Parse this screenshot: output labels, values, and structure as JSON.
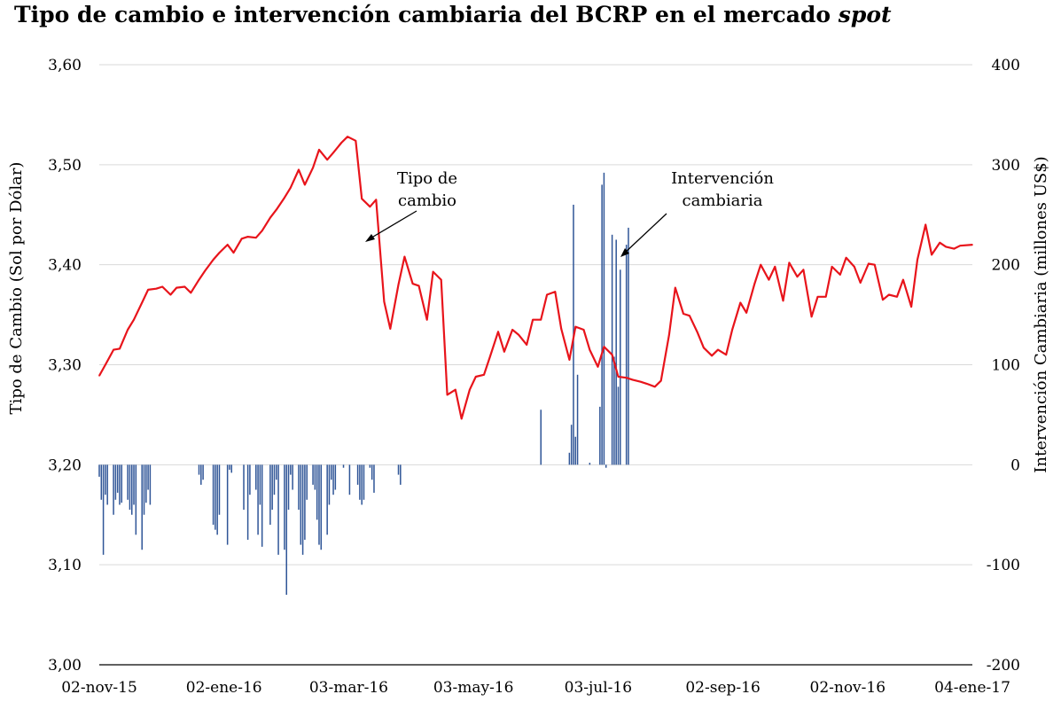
{
  "chart_data": {
    "type": "line",
    "title": "Tipo de cambio e intervención cambiaria del BCRP en el mercado",
    "title_italic": "spot",
    "ylabel": "Tipo de Cambio (Sol por Dólar)",
    "y2label": "Intervención Cambiaria (millones US$)",
    "ylim": [
      3.0,
      3.6
    ],
    "y2lim": [
      -200,
      400
    ],
    "grid": true,
    "legend": "none",
    "colors": {
      "line": "#e8141b",
      "bar": "#2f5597",
      "grid": "#d9d9d9"
    },
    "y_ticks": [
      "3,00",
      "3,10",
      "3,20",
      "3,30",
      "3,40",
      "3,50",
      "3,60"
    ],
    "y2_ticks": [
      "-200",
      "-100",
      "0",
      "100",
      "200",
      "300",
      "400"
    ],
    "x_ticks": [
      "02-nov-15",
      "02-ene-16",
      "03-mar-16",
      "03-may-16",
      "03-jul-16",
      "02-sep-16",
      "02-nov-16",
      "04-ene-17"
    ],
    "annotations": [
      {
        "lines": [
          "Tipo de",
          "cambio"
        ]
      },
      {
        "lines": [
          "Intervención",
          "cambiaria"
        ]
      }
    ],
    "series": [
      {
        "name": "Tipo de cambio",
        "type": "line",
        "x": [
          "2015-11-02",
          "2015-11-05",
          "2015-11-09",
          "2015-11-12",
          "2015-11-16",
          "2015-11-19",
          "2015-11-23",
          "2015-11-26",
          "2015-11-30",
          "2015-12-03",
          "2015-12-07",
          "2015-12-10",
          "2015-12-14",
          "2015-12-17",
          "2015-12-21",
          "2015-12-24",
          "2015-12-28",
          "2015-12-31",
          "2016-01-04",
          "2016-01-07",
          "2016-01-11",
          "2016-01-14",
          "2016-01-18",
          "2016-01-21",
          "2016-01-25",
          "2016-01-28",
          "2016-02-01",
          "2016-02-04",
          "2016-02-08",
          "2016-02-11",
          "2016-02-15",
          "2016-02-18",
          "2016-02-22",
          "2016-02-25",
          "2016-02-29",
          "2016-03-03",
          "2016-03-07",
          "2016-03-10",
          "2016-03-14",
          "2016-03-17",
          "2016-03-21",
          "2016-03-24",
          "2016-03-28",
          "2016-03-31",
          "2016-04-04",
          "2016-04-07",
          "2016-04-11",
          "2016-04-14",
          "2016-04-18",
          "2016-04-21",
          "2016-04-25",
          "2016-04-28",
          "2016-05-02",
          "2016-05-05",
          "2016-05-09",
          "2016-05-12",
          "2016-05-16",
          "2016-05-19",
          "2016-05-23",
          "2016-05-26",
          "2016-05-30",
          "2016-06-02",
          "2016-06-06",
          "2016-06-09",
          "2016-06-13",
          "2016-06-16",
          "2016-06-20",
          "2016-06-23",
          "2016-06-27",
          "2016-06-30",
          "2016-07-04",
          "2016-07-07",
          "2016-07-11",
          "2016-07-14",
          "2016-07-18",
          "2016-07-21",
          "2016-07-25",
          "2016-07-28",
          "2016-08-01",
          "2016-08-04",
          "2016-08-08",
          "2016-08-11",
          "2016-08-15",
          "2016-08-18",
          "2016-08-22",
          "2016-08-25",
          "2016-08-29",
          "2016-09-01",
          "2016-09-05",
          "2016-09-08",
          "2016-09-12",
          "2016-09-15",
          "2016-09-19",
          "2016-09-22",
          "2016-09-26",
          "2016-09-29",
          "2016-10-03",
          "2016-10-06",
          "2016-10-10",
          "2016-10-13",
          "2016-10-17",
          "2016-10-20",
          "2016-10-24",
          "2016-10-27",
          "2016-10-31",
          "2016-11-03",
          "2016-11-07",
          "2016-11-10",
          "2016-11-14",
          "2016-11-17",
          "2016-11-21",
          "2016-11-24",
          "2016-11-28",
          "2016-12-01",
          "2016-12-05",
          "2016-12-08",
          "2016-12-12",
          "2016-12-15",
          "2016-12-19",
          "2016-12-22",
          "2016-12-26",
          "2016-12-29",
          "2017-01-04"
        ],
        "values": [
          3.289,
          3.3,
          3.315,
          3.316,
          3.335,
          3.345,
          3.362,
          3.375,
          3.376,
          3.378,
          3.37,
          3.377,
          3.378,
          3.372,
          3.385,
          3.394,
          3.405,
          3.412,
          3.42,
          3.412,
          3.426,
          3.428,
          3.427,
          3.434,
          3.447,
          3.455,
          3.467,
          3.477,
          3.495,
          3.48,
          3.497,
          3.515,
          3.505,
          3.512,
          3.522,
          3.528,
          3.524,
          3.466,
          3.458,
          3.465,
          3.363,
          3.336,
          3.38,
          3.408,
          3.381,
          3.379,
          3.345,
          3.393,
          3.385,
          3.27,
          3.275,
          3.246,
          3.275,
          3.288,
          3.29,
          3.308,
          3.333,
          3.313,
          3.335,
          3.33,
          3.32,
          3.345,
          3.345,
          3.37,
          3.373,
          3.336,
          3.305,
          3.338,
          3.335,
          3.315,
          3.298,
          3.318,
          3.31,
          3.288,
          3.287,
          3.285,
          3.283,
          3.281,
          3.278,
          3.284,
          3.33,
          3.377,
          3.351,
          3.349,
          3.332,
          3.317,
          3.309,
          3.315,
          3.31,
          3.335,
          3.362,
          3.352,
          3.381,
          3.4,
          3.385,
          3.398,
          3.364,
          3.402,
          3.388,
          3.395,
          3.348,
          3.368,
          3.368,
          3.398,
          3.39,
          3.407,
          3.398,
          3.382,
          3.401,
          3.4,
          3.365,
          3.37,
          3.368,
          3.385,
          3.358,
          3.405,
          3.44,
          3.41,
          3.422,
          3.418,
          3.416,
          3.419,
          3.42
        ]
      },
      {
        "name": "Intervención cambiaria",
        "type": "bar",
        "x": [
          "2015-11-02",
          "2015-11-03",
          "2015-11-04",
          "2015-11-05",
          "2015-11-06",
          "2015-11-09",
          "2015-11-10",
          "2015-11-11",
          "2015-11-12",
          "2015-11-13",
          "2015-11-16",
          "2015-11-17",
          "2015-11-18",
          "2015-11-19",
          "2015-11-20",
          "2015-11-23",
          "2015-11-24",
          "2015-11-25",
          "2015-11-26",
          "2015-11-27",
          "2015-12-21",
          "2015-12-22",
          "2015-12-23",
          "2015-12-28",
          "2015-12-29",
          "2015-12-30",
          "2015-12-31",
          "2016-01-04",
          "2016-01-05",
          "2016-01-06",
          "2016-01-12",
          "2016-01-14",
          "2016-01-15",
          "2016-01-18",
          "2016-01-19",
          "2016-01-20",
          "2016-01-21",
          "2016-01-25",
          "2016-01-26",
          "2016-01-27",
          "2016-01-28",
          "2016-01-29",
          "2016-02-01",
          "2016-02-02",
          "2016-02-03",
          "2016-02-04",
          "2016-02-05",
          "2016-02-08",
          "2016-02-09",
          "2016-02-10",
          "2016-02-11",
          "2016-02-12",
          "2016-02-15",
          "2016-02-16",
          "2016-02-17",
          "2016-02-18",
          "2016-02-19",
          "2016-02-22",
          "2016-02-23",
          "2016-02-24",
          "2016-02-25",
          "2016-02-26",
          "2016-03-01",
          "2016-03-04",
          "2016-03-08",
          "2016-03-09",
          "2016-03-10",
          "2016-03-11",
          "2016-03-14",
          "2016-03-15",
          "2016-03-16",
          "2016-03-28",
          "2016-03-29",
          "2016-06-06",
          "2016-06-20",
          "2016-06-21",
          "2016-06-22",
          "2016-06-23",
          "2016-06-24",
          "2016-06-30",
          "2016-07-05",
          "2016-07-06",
          "2016-07-07",
          "2016-07-08",
          "2016-07-11",
          "2016-07-12",
          "2016-07-13",
          "2016-07-14",
          "2016-07-15",
          "2016-07-18",
          "2016-07-19"
        ],
        "values": [
          -12,
          -35,
          -90,
          -30,
          -40,
          -50,
          -35,
          -28,
          -40,
          -38,
          -35,
          -45,
          -50,
          -40,
          -70,
          -85,
          -50,
          -38,
          -25,
          -40,
          -10,
          -20,
          -15,
          -60,
          -65,
          -70,
          -50,
          -80,
          -5,
          -8,
          -45,
          -75,
          -30,
          -25,
          -70,
          -40,
          -82,
          -60,
          -45,
          -30,
          -15,
          -90,
          -85,
          -130,
          -45,
          -10,
          -25,
          -45,
          -80,
          -90,
          -75,
          -35,
          -20,
          -25,
          -55,
          -80,
          -85,
          -70,
          -40,
          -15,
          -30,
          -25,
          -3,
          -30,
          -20,
          -35,
          -40,
          -35,
          -3,
          -15,
          -28,
          -10,
          -20,
          55,
          12,
          40,
          260,
          28,
          90,
          2,
          58,
          280,
          292,
          -3,
          230,
          108,
          225,
          78,
          195,
          220,
          237
        ]
      }
    ]
  }
}
